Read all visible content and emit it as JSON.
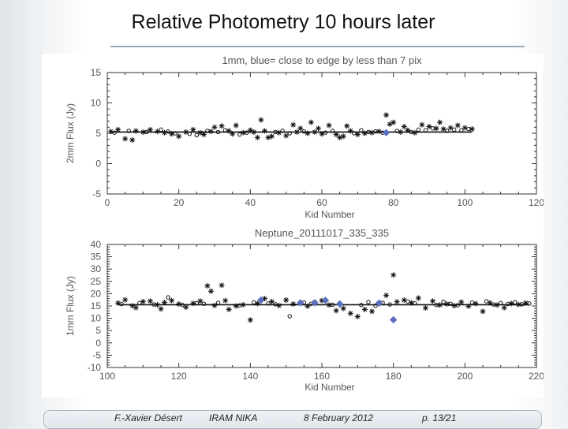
{
  "slide": {
    "title": "Relative Photometry 10 hours later",
    "footer": {
      "author": "F.-Xavier Désert",
      "venue": "IRAM NIKA",
      "date": "8 February 2012",
      "page": "p. 13/21"
    }
  },
  "chart_data": [
    {
      "type": "scatter",
      "title": "1mm, blue= close to edge by less than 7 pix",
      "xlabel": "Kid Number",
      "ylabel": "2mm Flux (Jy)",
      "xlim": [
        0,
        120
      ],
      "ylim": [
        -5,
        15
      ],
      "xticks": [
        0,
        20,
        40,
        60,
        80,
        100,
        120
      ],
      "yticks": [
        -5,
        0,
        5,
        10,
        15
      ],
      "reference_level": 5.2,
      "series": [
        {
          "marker": "star",
          "color": "#111111",
          "x": [
            1,
            3,
            5,
            7,
            8,
            10,
            12,
            14,
            16,
            18,
            20,
            22,
            24,
            26,
            27,
            29,
            30,
            32,
            34,
            35,
            36,
            38,
            40,
            41,
            42,
            43,
            44,
            45,
            46,
            48,
            50,
            52,
            53,
            54,
            56,
            57,
            58,
            59,
            60,
            62,
            64,
            65,
            66,
            67,
            68,
            70,
            72,
            74,
            76,
            78,
            79,
            80,
            82,
            83,
            84,
            86,
            88,
            90,
            92,
            93,
            94,
            96,
            98,
            100,
            102
          ],
          "y": [
            5.3,
            5.6,
            4.1,
            3.9,
            5.4,
            5.2,
            5.6,
            5.3,
            5.1,
            4.9,
            4.5,
            5.2,
            5.6,
            5.1,
            4.8,
            5.3,
            6.0,
            6.2,
            5.4,
            4.9,
            6.3,
            5.1,
            5.5,
            5.2,
            4.3,
            7.2,
            5.4,
            4.3,
            4.5,
            5.1,
            4.6,
            6.4,
            5.2,
            5.8,
            5.0,
            6.8,
            5.2,
            5.8,
            4.9,
            6.3,
            4.8,
            4.3,
            4.5,
            6.2,
            5.4,
            4.8,
            5.0,
            5.1,
            5.3,
            8.0,
            6.5,
            6.8,
            5.2,
            6.1,
            5.5,
            5.1,
            6.4,
            6.1,
            5.8,
            6.8,
            5.7,
            5.9,
            6.3,
            5.9,
            5.7
          ]
        },
        {
          "marker": "circle",
          "color": "#111111",
          "x": [
            2,
            6,
            11,
            15,
            17,
            19,
            23,
            25,
            28,
            31,
            33,
            37,
            39,
            47,
            49,
            51,
            55,
            61,
            63,
            69,
            71,
            73,
            75,
            77,
            81,
            85,
            87,
            89,
            91,
            95,
            97,
            99,
            101
          ],
          "y": [
            5.1,
            5.4,
            5.2,
            5.6,
            5.3,
            5.0,
            4.9,
            4.7,
            5.4,
            5.2,
            5.5,
            4.8,
            5.1,
            5.2,
            5.4,
            5.0,
            5.3,
            5.1,
            5.4,
            5.0,
            5.5,
            5.2,
            5.3,
            5.1,
            5.4,
            5.2,
            5.6,
            5.5,
            5.8,
            5.4,
            5.6,
            5.5,
            5.7
          ]
        },
        {
          "marker": "filled-diamond",
          "color": "#5b6fbf",
          "x": [
            78
          ],
          "y": [
            5.1
          ]
        }
      ]
    },
    {
      "type": "scatter",
      "title": "Neptune_20111017_335_335",
      "xlabel": "Kid Number",
      "ylabel": "1mm Flux (Jy)",
      "xlim": [
        100,
        220
      ],
      "ylim": [
        -10,
        40
      ],
      "xticks": [
        100,
        120,
        140,
        160,
        180,
        200,
        220
      ],
      "yticks": [
        -10,
        -5,
        0,
        5,
        10,
        15,
        20,
        25,
        30,
        35,
        40
      ],
      "reference_level": 15.5,
      "series": [
        {
          "marker": "star",
          "color": "#111111",
          "x": [
            103,
            105,
            107,
            108,
            110,
            112,
            114,
            115,
            116,
            118,
            120,
            122,
            124,
            126,
            128,
            129,
            130,
            132,
            133,
            134,
            136,
            138,
            140,
            142,
            144,
            146,
            148,
            150,
            152,
            154,
            156,
            158,
            160,
            162,
            164,
            166,
            168,
            170,
            172,
            174,
            176,
            178,
            180,
            181,
            183,
            185,
            187,
            189,
            191,
            193,
            195,
            197,
            199,
            201,
            203,
            205,
            207,
            209,
            211,
            213,
            215,
            217
          ],
          "y": [
            16.2,
            17.5,
            15.1,
            14.3,
            16.8,
            17.0,
            15.5,
            13.8,
            16.4,
            17.2,
            15.8,
            14.5,
            16.1,
            17.0,
            23.2,
            21.0,
            15.2,
            23.4,
            17.2,
            13.6,
            15.0,
            15.5,
            9.3,
            16.0,
            18.0,
            16.8,
            15.2,
            17.4,
            15.8,
            16.2,
            14.9,
            16.5,
            17.2,
            15.4,
            13.1,
            14.0,
            12.0,
            10.7,
            13.6,
            12.8,
            16.1,
            19.3,
            27.6,
            16.7,
            17.4,
            16.3,
            18.2,
            14.2,
            17.0,
            15.4,
            15.8,
            15.1,
            16.6,
            14.9,
            16.0,
            12.8,
            16.3,
            15.4,
            14.3,
            16.0,
            15.6,
            16.2
          ]
        },
        {
          "marker": "circle",
          "color": "#111111",
          "x": [
            104,
            109,
            113,
            117,
            121,
            125,
            127,
            131,
            137,
            141,
            145,
            147,
            151,
            155,
            157,
            163,
            165,
            171,
            173,
            175,
            177,
            179,
            184,
            186,
            192,
            194,
            196,
            198,
            202,
            206,
            208,
            210,
            212,
            214,
            216,
            218
          ],
          "y": [
            15.8,
            16.2,
            15.6,
            18.5,
            15.4,
            16.1,
            15.9,
            16.3,
            15.2,
            16.5,
            16.0,
            15.7,
            10.8,
            16.4,
            15.9,
            15.5,
            16.2,
            15.4,
            16.6,
            15.1,
            16.3,
            15.6,
            16.8,
            16.1,
            15.4,
            16.7,
            15.9,
            15.3,
            16.4,
            16.9,
            15.6,
            16.2,
            15.8,
            16.5,
            15.7,
            16.0
          ]
        },
        {
          "marker": "filled-diamond",
          "color": "#5b6fbf",
          "x": [
            143,
            154,
            158,
            161,
            165,
            176,
            180
          ],
          "y": [
            17.4,
            16.3,
            16.3,
            17.3,
            15.8,
            16.2,
            9.4
          ]
        }
      ]
    }
  ]
}
